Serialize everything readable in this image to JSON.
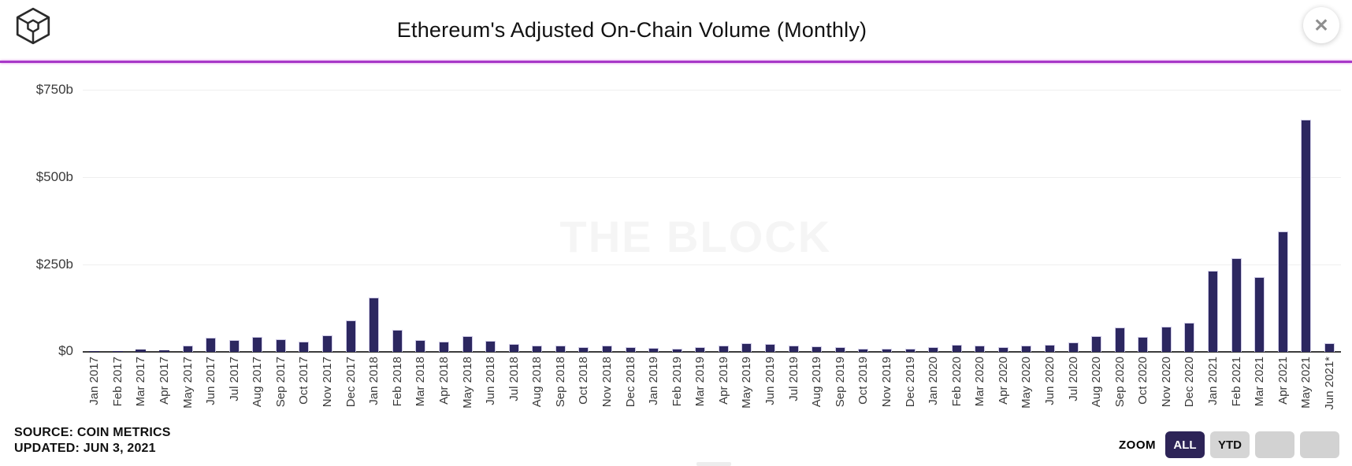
{
  "header": {
    "title": "Ethereum's Adjusted On-Chain Volume (Monthly)",
    "close_icon": "✕"
  },
  "chart_data": {
    "type": "bar",
    "title": "Ethereum's Adjusted On-Chain Volume (Monthly)",
    "unit": "USD billions",
    "categories": [
      "Jan 2017",
      "Feb 2017",
      "Mar 2017",
      "Apr 2017",
      "May 2017",
      "Jun 2017",
      "Jul 2017",
      "Aug 2017",
      "Sep 2017",
      "Oct 2017",
      "Nov 2017",
      "Dec 2017",
      "Jan 2018",
      "Feb 2018",
      "Mar 2018",
      "Apr 2018",
      "May 2018",
      "Jun 2018",
      "Jul 2018",
      "Aug 2018",
      "Sep 2018",
      "Oct 2018",
      "Nov 2018",
      "Dec 2018",
      "Jan 2019",
      "Feb 2019",
      "Mar 2019",
      "Apr 2019",
      "May 2019",
      "Jun 2019",
      "Jul 2019",
      "Aug 2019",
      "Sep 2019",
      "Oct 2019",
      "Nov 2019",
      "Dec 2019",
      "Jan 2020",
      "Feb 2020",
      "Mar 2020",
      "Apr 2020",
      "May 2020",
      "Jun 2020",
      "Jul 2020",
      "Aug 2020",
      "Sep 2020",
      "Oct 2020",
      "Nov 2020",
      "Dec 2020",
      "Jan 2021",
      "Feb 2021",
      "Mar 2021",
      "Apr 2021",
      "May 2021",
      "Jun 2021*"
    ],
    "values": [
      1,
      1,
      6,
      4,
      18,
      41,
      33,
      42,
      35,
      29,
      47,
      89,
      155,
      64,
      33,
      30,
      45,
      32,
      23,
      17,
      17,
      13,
      18,
      13,
      12,
      9,
      13,
      17,
      24,
      23,
      17,
      15,
      13,
      9,
      9,
      10,
      13,
      20,
      17,
      13,
      18,
      21,
      27,
      45,
      70,
      43,
      71,
      83,
      233,
      269,
      213,
      345,
      665,
      25
    ],
    "ylabel": "",
    "xlabel": "",
    "ylim": [
      0,
      790
    ],
    "ytick_values": [
      0,
      250,
      500,
      750
    ],
    "ytick_labels": [
      "$0",
      "$250b",
      "$500b",
      "$750b"
    ],
    "grid": true,
    "legend": false,
    "bar_color": "#2c2760",
    "bar_edge_color": "#cfcbe6",
    "watermark": "THE BLOCK"
  },
  "y_axis": {
    "t750": "$750b",
    "t500": "$500b",
    "t250": "$250b",
    "t0": "$0"
  },
  "footer": {
    "source": "SOURCE: COIN METRICS",
    "updated": "UPDATED: JUN 3, 2021",
    "zoom_label": "ZOOM",
    "zoom_buttons": [
      {
        "label": "ALL",
        "state": "active"
      },
      {
        "label": "YTD",
        "state": "inactive"
      },
      {
        "label": "",
        "state": "blank"
      },
      {
        "label": "",
        "state": "blank"
      }
    ]
  },
  "colors": {
    "bar": "#2c2760",
    "divider": "#a838c8",
    "active_button": "#2d2457",
    "watermark": "#f5f5f5"
  }
}
